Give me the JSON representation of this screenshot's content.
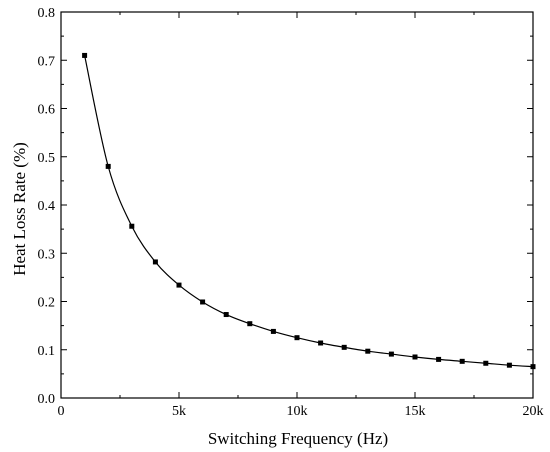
{
  "chart_data": {
    "type": "line",
    "title": "",
    "xlabel": "Switching Frequency (Hz)",
    "ylabel": "Heat Loss Rate (%)",
    "xlim": [
      0,
      20000
    ],
    "ylim": [
      0,
      0.8
    ],
    "x_ticks": [
      {
        "value": 0,
        "label": "0"
      },
      {
        "value": 5000,
        "label": "5k"
      },
      {
        "value": 10000,
        "label": "10k"
      },
      {
        "value": 15000,
        "label": "15k"
      },
      {
        "value": 20000,
        "label": "20k"
      }
    ],
    "y_ticks": [
      {
        "value": 0,
        "label": "0.0"
      },
      {
        "value": 0.1,
        "label": "0.1"
      },
      {
        "value": 0.2,
        "label": "0.2"
      },
      {
        "value": 0.3,
        "label": "0.3"
      },
      {
        "value": 0.4,
        "label": "0.4"
      },
      {
        "value": 0.5,
        "label": "0.5"
      },
      {
        "value": 0.6,
        "label": "0.6"
      },
      {
        "value": 0.7,
        "label": "0.7"
      },
      {
        "value": 0.8,
        "label": "0.8"
      }
    ],
    "grid": false,
    "legend": "none",
    "marker": "square",
    "color": "#000000",
    "series": [
      {
        "x": [
          1000,
          2000,
          3000,
          4000,
          5000,
          6000,
          7000,
          8000,
          9000,
          10000,
          11000,
          12000,
          13000,
          14000,
          15000,
          16000,
          17000,
          18000,
          19000,
          20000
        ],
        "y": [
          0.71,
          0.48,
          0.356,
          0.282,
          0.234,
          0.199,
          0.173,
          0.154,
          0.138,
          0.125,
          0.114,
          0.105,
          0.097,
          0.091,
          0.085,
          0.08,
          0.076,
          0.072,
          0.068,
          0.065
        ]
      }
    ]
  }
}
